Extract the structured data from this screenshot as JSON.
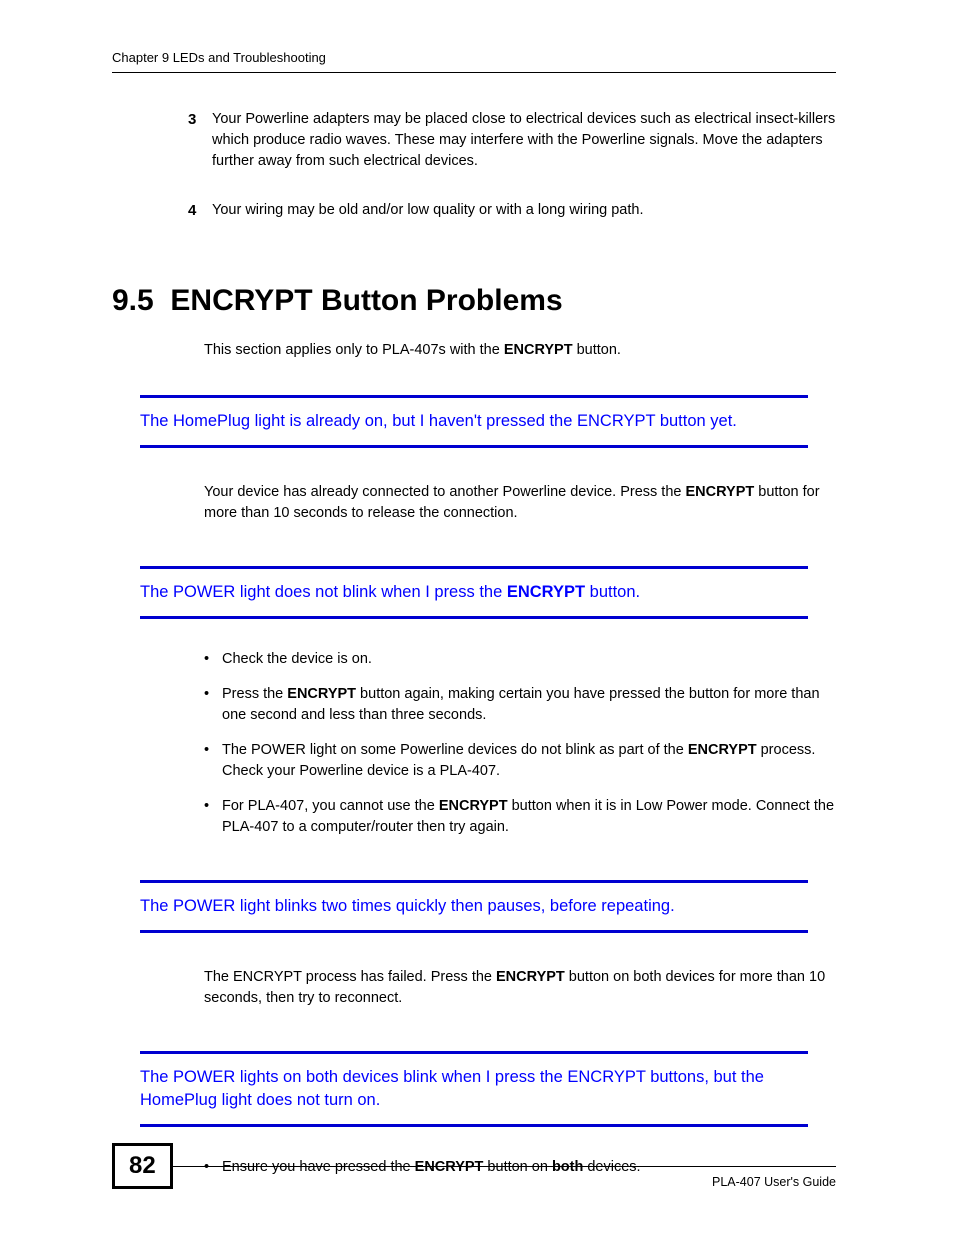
{
  "colors": {
    "text": "#000000",
    "link": "#0000ff",
    "rule": "#0000d0",
    "background": "#ffffff",
    "border": "#000000"
  },
  "typography": {
    "body_font": "Verdana",
    "heading_font": "Arial",
    "body_size_pt": 11,
    "heading_size_pt": 22,
    "topic_size_pt": 12.5,
    "page_number_size_pt": 18
  },
  "header": {
    "chapter": "Chapter 9 LEDs and Troubleshooting"
  },
  "numbered": {
    "n3": "3",
    "t3": "Your Powerline adapters may be placed close to electrical devices such as electrical insect-killers which produce radio waves. These may interfere with the Powerline signals. Move the adapters further away from such electrical devices.",
    "n4": "4",
    "t4": "Your wiring may be old and/or low quality or with a long wiring path."
  },
  "section": {
    "number": "9.5",
    "title": "ENCRYPT Button Problems",
    "intro_pre": "This section applies only to PLA-407s with the ",
    "intro_b": "ENCRYPT",
    "intro_post": " button."
  },
  "topic1": {
    "heading": "The HomePlug light is already on, but I haven't pressed the ENCRYPT button yet.",
    "p_pre": "Your device has already connected to another Powerline device. Press the ",
    "p_b": "ENCRYPT",
    "p_post": " button for more than 10 seconds to release the connection."
  },
  "topic2": {
    "h_pre": "The POWER light does not blink when I press the ",
    "h_b": "ENCRYPT",
    "h_post": " button.",
    "li1": "Check the device is on.",
    "li2_pre": "Press the ",
    "li2_b": "ENCRYPT",
    "li2_post": " button again, making certain you have pressed the button for more than one second and less than three seconds.",
    "li3_pre": "The POWER light on some Powerline devices do not blink as part of the ",
    "li3_b": "ENCRYPT",
    "li3_post": " process. Check your Powerline device is a PLA-407.",
    "li4_pre": "For PLA-407, you cannot use the ",
    "li4_b": "ENCRYPT",
    "li4_post": " button when it is in Low Power mode. Connect the PLA-407 to a computer/router then try again."
  },
  "topic3": {
    "heading": "The POWER light blinks two times quickly then pauses, before repeating.",
    "p_pre": "The ENCRYPT process has failed. Press the ",
    "p_b": "ENCRYPT",
    "p_post": " button on both devices for more than 10 seconds, then try to reconnect."
  },
  "topic4": {
    "heading": "The POWER lights on both devices blink when I press the ENCRYPT buttons, but the HomePlug light does not turn on.",
    "li1_pre": "Ensure you have pressed the ",
    "li1_b1": "ENCRYPT",
    "li1_mid": " button on ",
    "li1_b2": "both",
    "li1_post": " devices."
  },
  "footer": {
    "page": "82",
    "guide": "PLA-407 User's Guide"
  }
}
